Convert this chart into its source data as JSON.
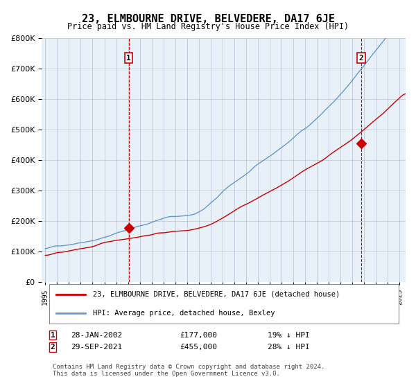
{
  "title": "23, ELMBOURNE DRIVE, BELVEDERE, DA17 6JE",
  "subtitle": "Price paid vs. HM Land Registry's House Price Index (HPI)",
  "bg_color": "#e8f0f8",
  "plot_bg_color": "#e8f0f8",
  "hpi_color": "#6699cc",
  "price_color": "#cc0000",
  "marker_color": "#cc0000",
  "dashed_color": "#cc0000",
  "ylim": [
    0,
    800000
  ],
  "yticks": [
    0,
    100000,
    200000,
    300000,
    400000,
    500000,
    600000,
    700000,
    800000
  ],
  "xlim_start": 1995.0,
  "xlim_end": 2025.5,
  "sale1_x": 2002.074,
  "sale1_y": 177000,
  "sale2_x": 2021.747,
  "sale2_y": 455000,
  "annotation1": "1",
  "annotation2": "2",
  "legend_label1": "23, ELMBOURNE DRIVE, BELVEDERE, DA17 6JE (detached house)",
  "legend_label2": "HPI: Average price, detached house, Bexley",
  "note1_label": "1",
  "note1_date": "28-JAN-2002",
  "note1_price": "£177,000",
  "note1_hpi": "19% ↓ HPI",
  "note2_label": "2",
  "note2_date": "29-SEP-2021",
  "note2_price": "£455,000",
  "note2_hpi": "28% ↓ HPI",
  "footer": "Contains HM Land Registry data © Crown copyright and database right 2024.\nThis data is licensed under the Open Government Licence v3.0."
}
